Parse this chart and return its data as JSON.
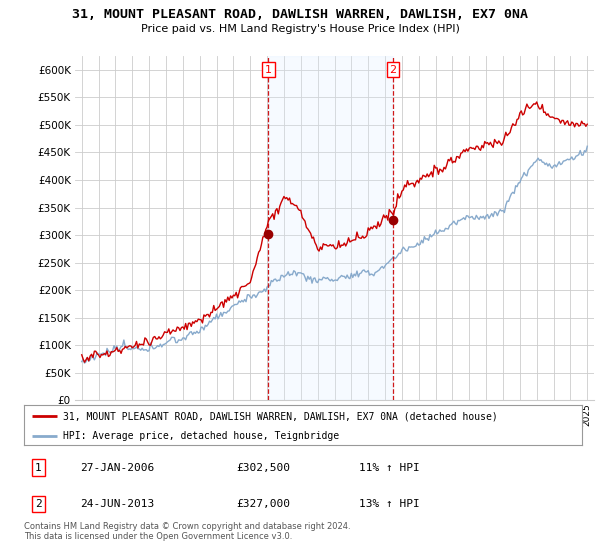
{
  "title": "31, MOUNT PLEASANT ROAD, DAWLISH WARREN, DAWLISH, EX7 0NA",
  "subtitle": "Price paid vs. HM Land Registry's House Price Index (HPI)",
  "yticks": [
    0,
    50000,
    100000,
    150000,
    200000,
    250000,
    300000,
    350000,
    400000,
    450000,
    500000,
    550000,
    600000
  ],
  "ylim": [
    0,
    625000
  ],
  "legend_line1": "31, MOUNT PLEASANT ROAD, DAWLISH WARREN, DAWLISH, EX7 0NA (detached house)",
  "legend_line2": "HPI: Average price, detached house, Teignbridge",
  "annotation1_label": "1",
  "annotation1_date": "27-JAN-2006",
  "annotation1_price": "£302,500",
  "annotation1_hpi": "11% ↑ HPI",
  "annotation2_label": "2",
  "annotation2_date": "24-JUN-2013",
  "annotation2_price": "£327,000",
  "annotation2_hpi": "13% ↑ HPI",
  "footnote": "Contains HM Land Registry data © Crown copyright and database right 2024.\nThis data is licensed under the Open Government Licence v3.0.",
  "line_color_sold": "#cc0000",
  "line_color_hpi": "#88aacc",
  "shade_color": "#ddeeff",
  "marker_color_sold": "#990000",
  "vline_color": "#cc0000",
  "background_color": "#ffffff",
  "grid_color": "#cccccc",
  "vline1_x": 2006.07,
  "vline2_x": 2013.48,
  "marker1_x": 2006.07,
  "marker1_y": 302500,
  "marker2_x": 2013.48,
  "marker2_y": 327000,
  "xlim_left": 1994.6,
  "xlim_right": 2025.4
}
